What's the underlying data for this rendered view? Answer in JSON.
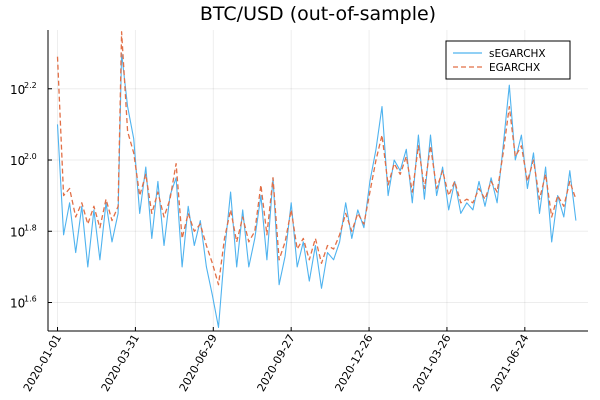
{
  "chart_data": {
    "type": "line",
    "title": "BTC/USD (out-of-sample)",
    "xlabel": "",
    "ylabel": "",
    "y_scale": "log10",
    "y_tick_base": "10",
    "x_ticks": [
      "2020-01-01",
      "2020-03-31",
      "2020-06-29",
      "2020-09-27",
      "2020-12-26",
      "2021-03-26",
      "2021-06-24"
    ],
    "y_tick_exponents": [
      "1.6",
      "1.8",
      "2.0",
      "2.2"
    ],
    "x_range": [
      "2019-12-21",
      "2021-09-05"
    ],
    "y_range_log10": [
      1.52,
      2.365
    ],
    "grid": true,
    "legend_position": "top-right",
    "series": [
      {
        "name": "sEGARCHX",
        "color": "#4fb3ef",
        "dash": "solid",
        "x": [
          "2020-01-01",
          "2020-01-08",
          "2020-01-15",
          "2020-01-22",
          "2020-01-29",
          "2020-02-05",
          "2020-02-12",
          "2020-02-19",
          "2020-02-26",
          "2020-03-04",
          "2020-03-11",
          "2020-03-15",
          "2020-03-22",
          "2020-03-29",
          "2020-04-05",
          "2020-04-12",
          "2020-04-19",
          "2020-04-26",
          "2020-05-03",
          "2020-05-10",
          "2020-05-17",
          "2020-05-24",
          "2020-05-31",
          "2020-06-07",
          "2020-06-14",
          "2020-06-21",
          "2020-06-28",
          "2020-07-05",
          "2020-07-12",
          "2020-07-19",
          "2020-07-26",
          "2020-08-02",
          "2020-08-09",
          "2020-08-16",
          "2020-08-23",
          "2020-08-30",
          "2020-09-06",
          "2020-09-13",
          "2020-09-20",
          "2020-09-27",
          "2020-10-04",
          "2020-10-11",
          "2020-10-18",
          "2020-10-25",
          "2020-11-01",
          "2020-11-08",
          "2020-11-15",
          "2020-11-22",
          "2020-11-29",
          "2020-12-06",
          "2020-12-13",
          "2020-12-20",
          "2020-12-27",
          "2021-01-03",
          "2021-01-10",
          "2021-01-17",
          "2021-01-24",
          "2021-01-31",
          "2021-02-07",
          "2021-02-14",
          "2021-02-21",
          "2021-02-28",
          "2021-03-07",
          "2021-03-14",
          "2021-03-21",
          "2021-03-28",
          "2021-04-04",
          "2021-04-11",
          "2021-04-18",
          "2021-04-25",
          "2021-05-02",
          "2021-05-09",
          "2021-05-16",
          "2021-05-23",
          "2021-05-30",
          "2021-06-06",
          "2021-06-13",
          "2021-06-20",
          "2021-06-27",
          "2021-07-04",
          "2021-07-11",
          "2021-07-18",
          "2021-07-25",
          "2021-08-01",
          "2021-08-08",
          "2021-08-15",
          "2021-08-22"
        ],
        "y_log10": [
          2.1,
          1.79,
          1.88,
          1.74,
          1.87,
          1.7,
          1.86,
          1.72,
          1.88,
          1.77,
          1.85,
          2.3,
          2.15,
          2.06,
          1.85,
          1.98,
          1.78,
          1.94,
          1.76,
          1.9,
          1.95,
          1.7,
          1.87,
          1.76,
          1.83,
          1.7,
          1.62,
          1.53,
          1.74,
          1.91,
          1.7,
          1.86,
          1.7,
          1.78,
          1.9,
          1.72,
          1.95,
          1.65,
          1.73,
          1.88,
          1.7,
          1.77,
          1.66,
          1.76,
          1.64,
          1.74,
          1.72,
          1.77,
          1.88,
          1.78,
          1.86,
          1.81,
          1.94,
          2.03,
          2.15,
          1.9,
          2.0,
          1.97,
          2.03,
          1.88,
          2.07,
          1.89,
          2.07,
          1.9,
          1.98,
          1.86,
          1.94,
          1.85,
          1.88,
          1.86,
          1.94,
          1.87,
          1.95,
          1.88,
          2.04,
          2.21,
          2.0,
          2.07,
          1.92,
          2.02,
          1.85,
          1.98,
          1.77,
          1.9,
          1.84,
          1.97,
          1.83
        ]
      },
      {
        "name": "EGARCHX",
        "color": "#e26f46",
        "dash": "dashed",
        "x": [
          "2020-01-01",
          "2020-01-08",
          "2020-01-15",
          "2020-01-22",
          "2020-01-29",
          "2020-02-05",
          "2020-02-12",
          "2020-02-19",
          "2020-02-26",
          "2020-03-04",
          "2020-03-11",
          "2020-03-15",
          "2020-03-22",
          "2020-03-29",
          "2020-04-05",
          "2020-04-12",
          "2020-04-19",
          "2020-04-26",
          "2020-05-03",
          "2020-05-10",
          "2020-05-17",
          "2020-05-24",
          "2020-05-31",
          "2020-06-07",
          "2020-06-14",
          "2020-06-21",
          "2020-06-28",
          "2020-07-05",
          "2020-07-12",
          "2020-07-19",
          "2020-07-26",
          "2020-08-02",
          "2020-08-09",
          "2020-08-16",
          "2020-08-23",
          "2020-08-30",
          "2020-09-06",
          "2020-09-13",
          "2020-09-20",
          "2020-09-27",
          "2020-10-04",
          "2020-10-11",
          "2020-10-18",
          "2020-10-25",
          "2020-11-01",
          "2020-11-08",
          "2020-11-15",
          "2020-11-22",
          "2020-11-29",
          "2020-12-06",
          "2020-12-13",
          "2020-12-20",
          "2020-12-27",
          "2021-01-03",
          "2021-01-10",
          "2021-01-17",
          "2021-01-24",
          "2021-01-31",
          "2021-02-07",
          "2021-02-14",
          "2021-02-21",
          "2021-02-28",
          "2021-03-07",
          "2021-03-14",
          "2021-03-21",
          "2021-03-28",
          "2021-04-04",
          "2021-04-11",
          "2021-04-18",
          "2021-04-25",
          "2021-05-02",
          "2021-05-09",
          "2021-05-16",
          "2021-05-23",
          "2021-05-30",
          "2021-06-06",
          "2021-06-13",
          "2021-06-20",
          "2021-06-27",
          "2021-07-04",
          "2021-07-11",
          "2021-07-18",
          "2021-07-25",
          "2021-08-01",
          "2021-08-08",
          "2021-08-15",
          "2021-08-22"
        ],
        "y_log10": [
          2.29,
          1.9,
          1.92,
          1.84,
          1.88,
          1.82,
          1.87,
          1.81,
          1.89,
          1.83,
          1.87,
          2.36,
          2.08,
          2.02,
          1.9,
          1.96,
          1.85,
          1.91,
          1.84,
          1.89,
          1.99,
          1.78,
          1.85,
          1.8,
          1.82,
          1.76,
          1.71,
          1.65,
          1.78,
          1.86,
          1.77,
          1.84,
          1.77,
          1.8,
          1.93,
          1.79,
          1.95,
          1.72,
          1.77,
          1.86,
          1.75,
          1.78,
          1.72,
          1.78,
          1.71,
          1.76,
          1.75,
          1.79,
          1.85,
          1.8,
          1.85,
          1.82,
          1.91,
          2.0,
          2.07,
          1.93,
          1.99,
          1.96,
          2.01,
          1.91,
          2.04,
          1.92,
          2.04,
          1.92,
          1.97,
          1.9,
          1.94,
          1.88,
          1.89,
          1.88,
          1.92,
          1.89,
          1.94,
          1.91,
          2.02,
          2.15,
          2.01,
          2.04,
          1.94,
          2.0,
          1.89,
          1.96,
          1.84,
          1.9,
          1.87,
          1.94,
          1.89
        ]
      }
    ]
  }
}
